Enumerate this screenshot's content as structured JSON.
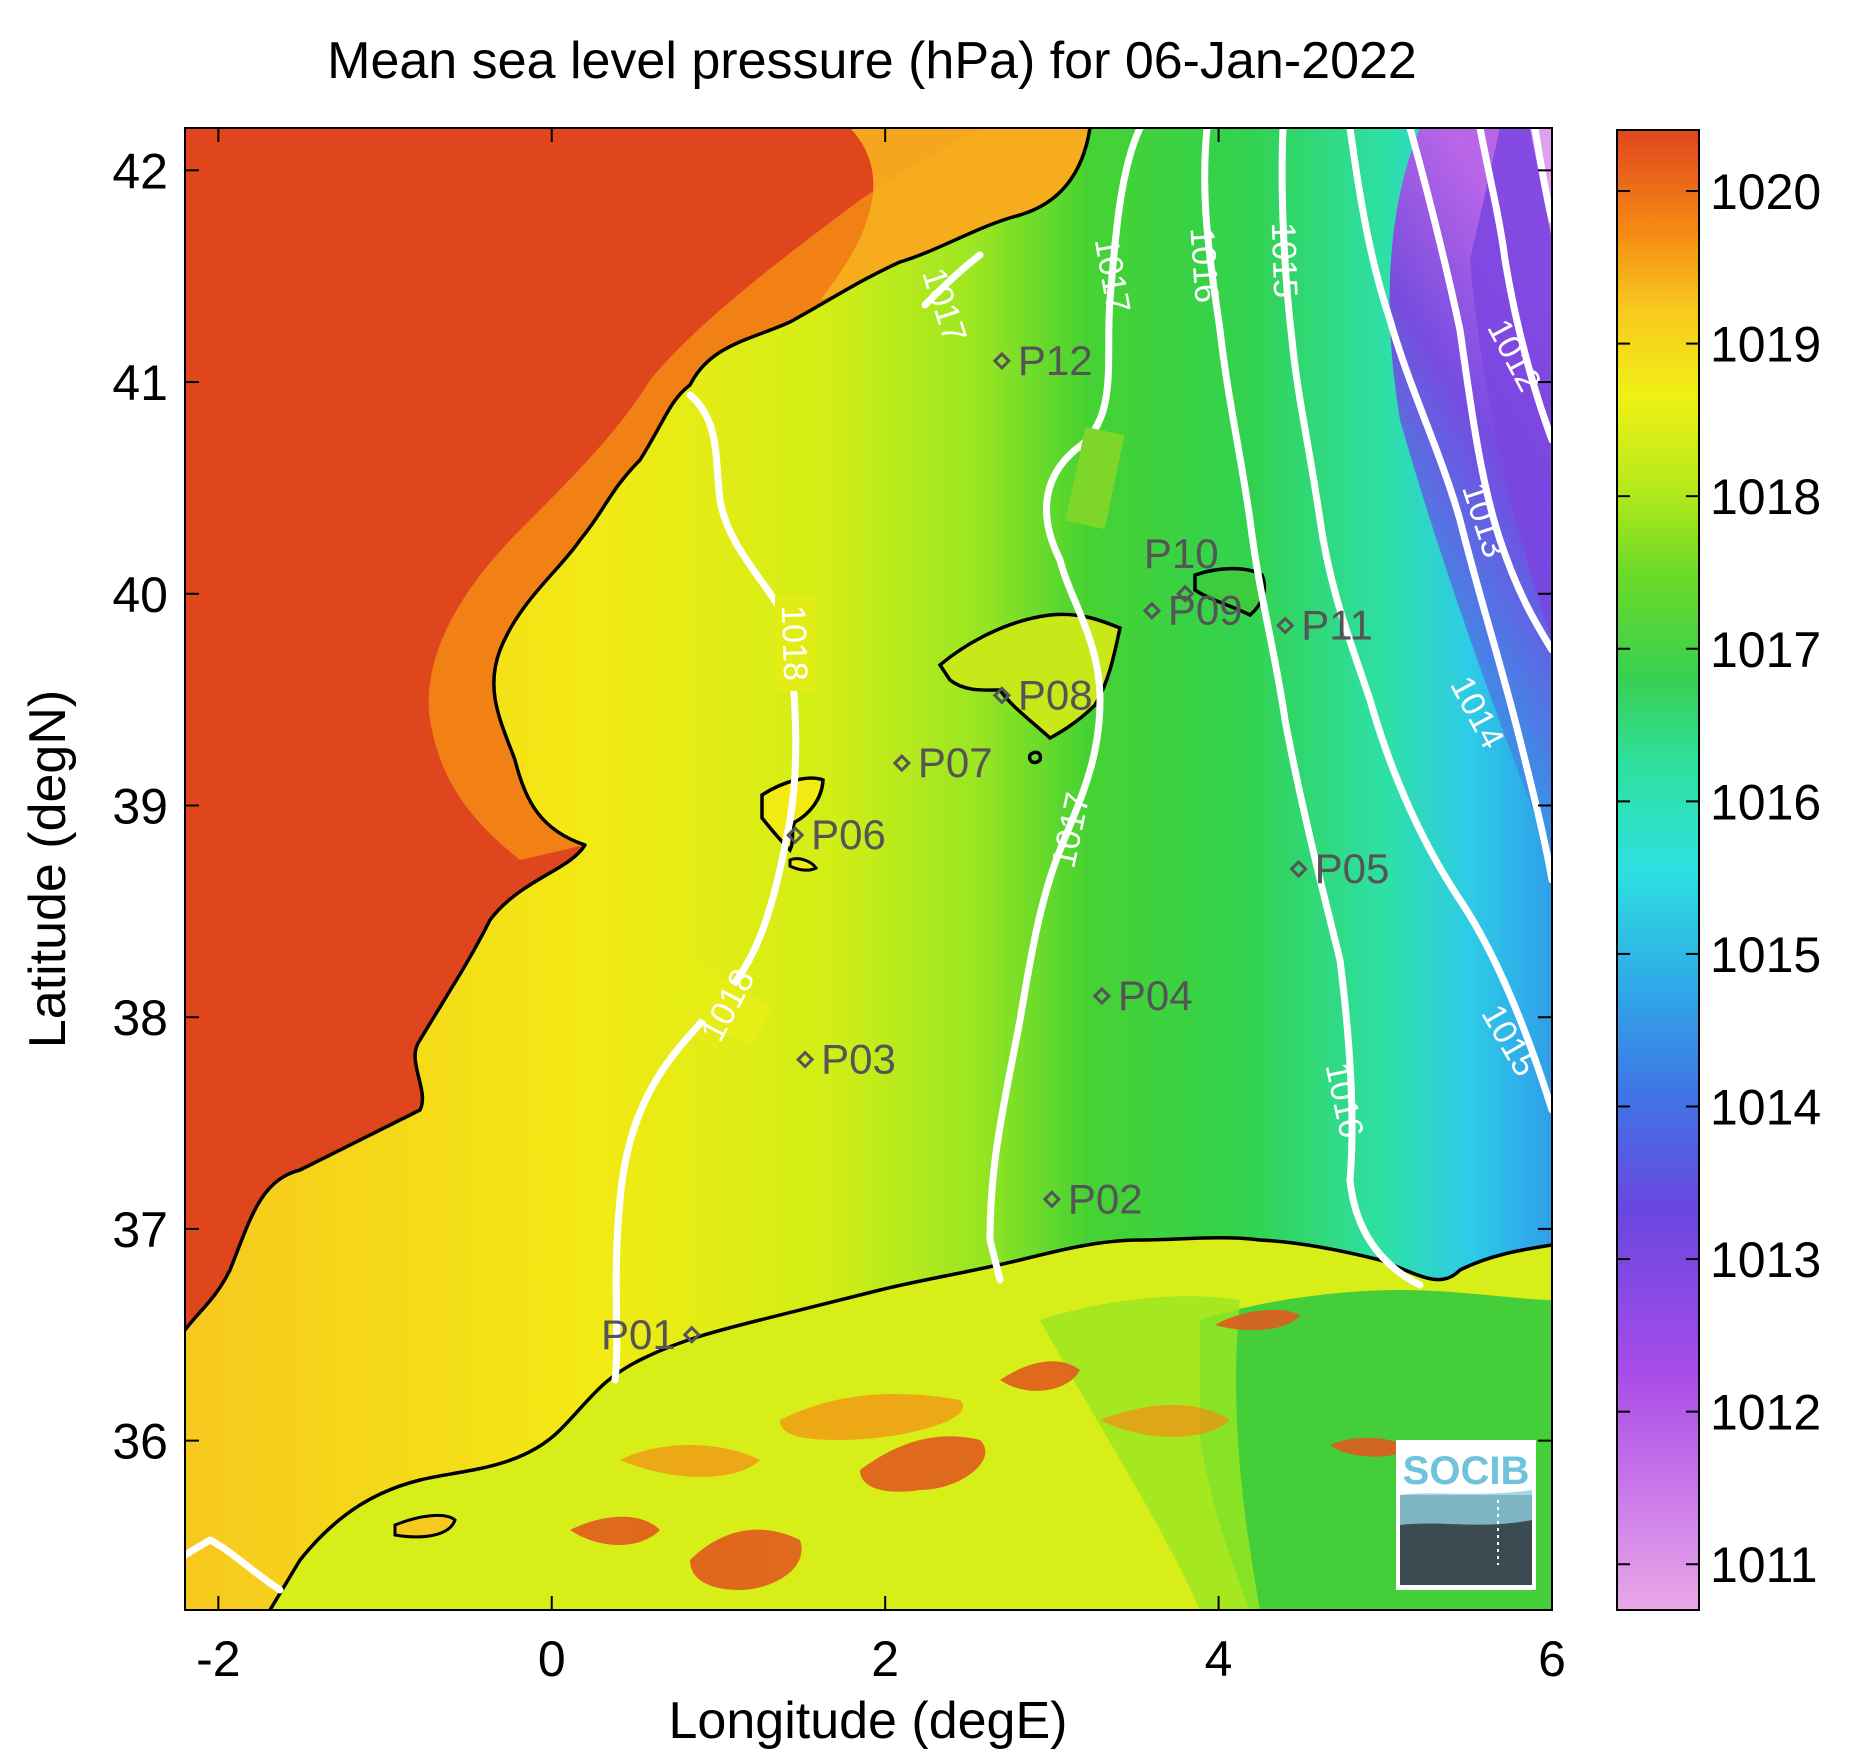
{
  "figure": {
    "title": "Mean sea level pressure (hPa) for 06-Jan-2022",
    "xlabel": "Longitude (degE)",
    "ylabel": "Latitude (degN)",
    "logo_text": "SOCIB"
  },
  "chart_data": {
    "type": "heatmap",
    "title": "Mean sea level pressure (hPa) for 06-Jan-2022",
    "xlabel": "Longitude (degE)",
    "ylabel": "Latitude (degN)",
    "xlim": [
      -2.2,
      6.0
    ],
    "ylim": [
      35.2,
      42.2
    ],
    "xticks": [
      -2,
      0,
      2,
      4,
      6
    ],
    "xtick_labels": [
      "-2",
      "0",
      "2",
      "4",
      "6"
    ],
    "yticks": [
      36,
      37,
      38,
      39,
      40,
      41,
      42
    ],
    "ytick_labels": [
      "36",
      "37",
      "38",
      "39",
      "40",
      "41",
      "42"
    ],
    "grid": false,
    "colorbar": {
      "range": [
        1010.7,
        1020.4
      ],
      "ticks": [
        1011,
        1012,
        1013,
        1014,
        1015,
        1016,
        1017,
        1018,
        1019,
        1020
      ],
      "tick_labels": [
        "1011",
        "1012",
        "1013",
        "1014",
        "1015",
        "1016",
        "1017",
        "1018",
        "1019",
        "1020"
      ],
      "colors": [
        "#e8a8e8",
        "#b34fe8",
        "#7a45e0",
        "#2f9ee8",
        "#2ee0e8",
        "#2ee0a0",
        "#3ccc3c",
        "#a6e61e",
        "#f0f014",
        "#f7c81e",
        "#f58c14",
        "#e0461e"
      ]
    },
    "points": [
      {
        "name": "P01",
        "lon": 0.84,
        "lat": 36.5
      },
      {
        "name": "P02",
        "lon": 3.0,
        "lat": 37.14
      },
      {
        "name": "P03",
        "lon": 1.52,
        "lat": 37.8
      },
      {
        "name": "P04",
        "lon": 3.3,
        "lat": 38.1
      },
      {
        "name": "P05",
        "lon": 4.48,
        "lat": 38.7
      },
      {
        "name": "P06",
        "lon": 1.46,
        "lat": 38.86
      },
      {
        "name": "P07",
        "lon": 2.1,
        "lat": 39.2
      },
      {
        "name": "P08",
        "lon": 2.7,
        "lat": 39.52
      },
      {
        "name": "P09",
        "lon": 3.6,
        "lat": 39.92
      },
      {
        "name": "P10",
        "lon": 3.8,
        "lat": 40.0
      },
      {
        "name": "P11",
        "lon": 4.4,
        "lat": 39.85
      },
      {
        "name": "P12",
        "lon": 2.7,
        "lat": 41.1
      }
    ],
    "contours": [
      {
        "level": "1018",
        "label_positions": [
          [
            1.5,
            39.6
          ],
          [
            1.25,
            37.95
          ]
        ]
      },
      {
        "level": "1017",
        "label_positions": [
          [
            2.45,
            41.25
          ],
          [
            3.33,
            41.5
          ],
          [
            3.1,
            38.9
          ]
        ]
      },
      {
        "level": "1016",
        "label_positions": [
          [
            3.95,
            41.5
          ],
          [
            4.85,
            37.3
          ]
        ]
      },
      {
        "level": "1015",
        "label_positions": [
          [
            4.45,
            41.5
          ],
          [
            5.7,
            37.8
          ]
        ]
      },
      {
        "level": "1014",
        "label_positions": [
          [
            5.45,
            39.1
          ]
        ]
      },
      {
        "level": "1013",
        "label_positions": [
          [
            5.6,
            40.15
          ]
        ]
      },
      {
        "level": "1012",
        "label_positions": [
          [
            5.7,
            41.05
          ]
        ]
      }
    ]
  }
}
